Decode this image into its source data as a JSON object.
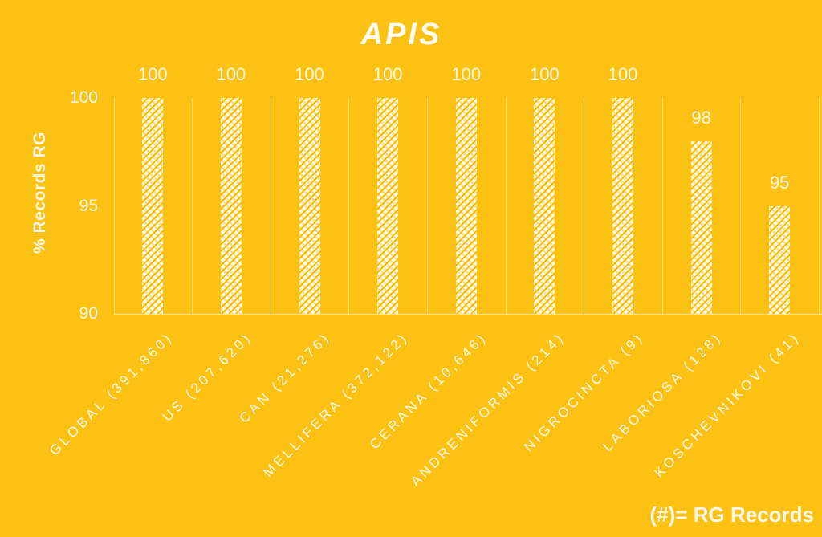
{
  "colors": {
    "background": "#FCC213",
    "bar_white": "#FFFEF6",
    "bar_stripe": "#F5BB07",
    "grid": "rgba(255,255,255,0.42)",
    "text": "#FDF7E7"
  },
  "chart_data": {
    "type": "bar",
    "title": "APIS",
    "ylabel": "% Records RG",
    "xlabel": "",
    "ylim": [
      90,
      100
    ],
    "yticks": [
      100,
      95,
      90
    ],
    "grid": "vertical category separators, baseline axis at 90",
    "legend": "none",
    "bar_style": "white diagonal hatch pattern on gold background",
    "categories": [
      "GLOBAL (391,860)",
      "US (207,620)",
      "CAN (21,276)",
      "MELLIFERA (372,122)",
      "CERANA (10,646)",
      "ANDRENIFORMIS (214)",
      "NIGROCINCTA (9)",
      "LABORIOSA (128)",
      "KOSCHEVNIKOVI (41)"
    ],
    "values": [
      100,
      100,
      100,
      100,
      100,
      100,
      100,
      98,
      95
    ],
    "data_labels": [
      "100",
      "100",
      "100",
      "100",
      "100",
      "100",
      "100",
      "98",
      "95"
    ],
    "footnote": "(#)= RG Records"
  }
}
